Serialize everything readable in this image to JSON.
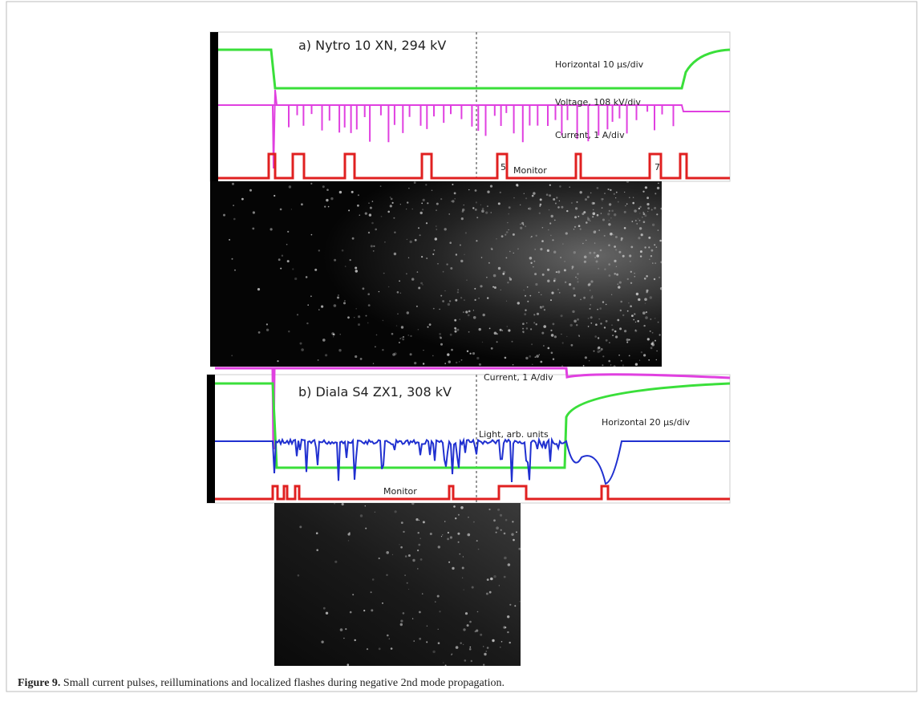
{
  "figure": {
    "panels": [
      {
        "title": "a) Nytro 10 XN, 294 kV",
        "labels": [
          "Horizontal 10 µs/div",
          "Voltage, 108 kV/div",
          "Current, 1 A/div",
          "Monitor",
          "5",
          "7"
        ]
      },
      {
        "title": "b) Diala S4 ZX1, 308 kV",
        "labels": [
          "Current, 1 A/div",
          "Horizontal 20 µs/div",
          "Light, arb. units",
          "Monitor"
        ]
      }
    ],
    "caption": {
      "label": "Figure 9.",
      "text": "Small current pulses, reilluminations and localized flashes during negative 2nd mode propagation."
    }
  }
}
